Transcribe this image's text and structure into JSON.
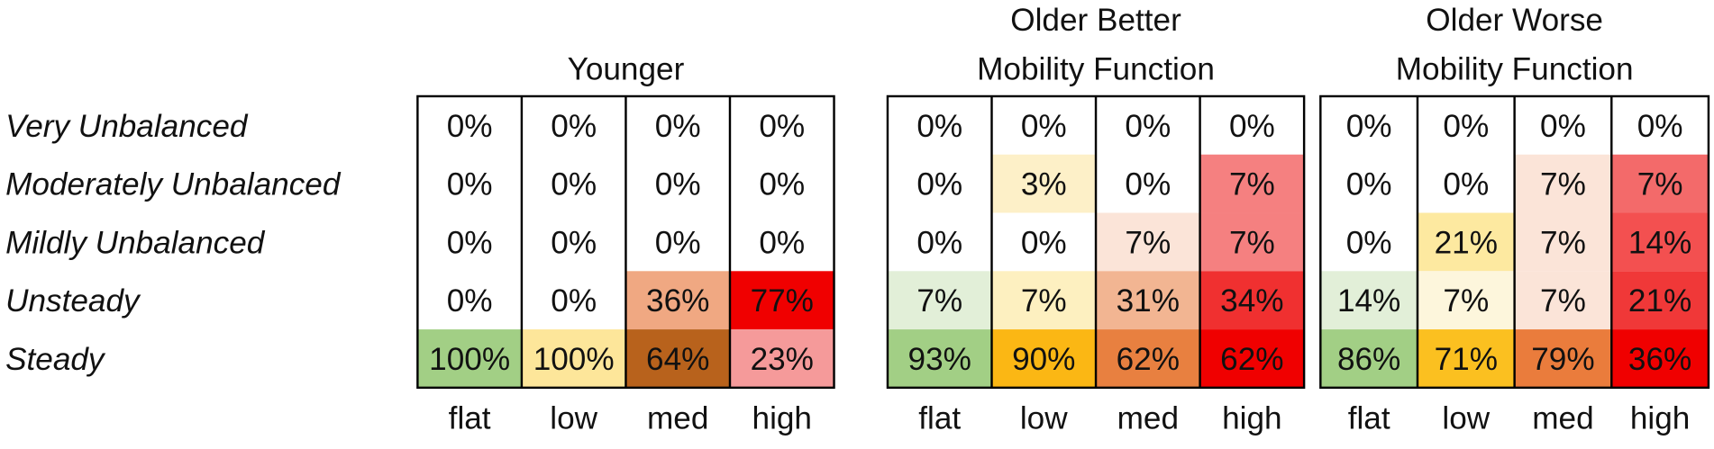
{
  "chart_data": [
    {
      "type": "heatmap",
      "title": [
        "Younger"
      ],
      "y_categories": [
        "Very Unbalanced",
        "Moderately Unbalanced",
        "Mildly Unbalanced",
        "Unsteady",
        "Steady"
      ],
      "categories": [
        "flat",
        "low",
        "med",
        "high"
      ],
      "values": [
        [
          0,
          0,
          0,
          0
        ],
        [
          0,
          0,
          0,
          0
        ],
        [
          0,
          0,
          0,
          0
        ],
        [
          0,
          0,
          36,
          77
        ],
        [
          100,
          100,
          64,
          23
        ]
      ],
      "value_labels": [
        [
          "0%",
          "0%",
          "0%",
          "0%"
        ],
        [
          "0%",
          "0%",
          "0%",
          "0%"
        ],
        [
          "0%",
          "0%",
          "0%",
          "0%"
        ],
        [
          "0%",
          "0%",
          "36%",
          "77%"
        ],
        [
          "100%",
          "100%",
          "64%",
          "23%"
        ]
      ],
      "cell_colors": [
        [
          "#ffffff",
          "#ffffff",
          "#ffffff",
          "#ffffff"
        ],
        [
          "#ffffff",
          "#ffffff",
          "#ffffff",
          "#ffffff"
        ],
        [
          "#ffffff",
          "#ffffff",
          "#ffffff",
          "#ffffff"
        ],
        [
          "#ffffff",
          "#ffffff",
          "#f0a882",
          "#f00000"
        ],
        [
          "#a2cf85",
          "#fde69a",
          "#b8621c",
          "#f59a9a"
        ]
      ]
    },
    {
      "type": "heatmap",
      "title": [
        "Older Better",
        "Mobility Function"
      ],
      "categories": [
        "flat",
        "low",
        "med",
        "high"
      ],
      "values": [
        [
          0,
          0,
          0,
          0
        ],
        [
          0,
          3,
          0,
          7
        ],
        [
          0,
          0,
          7,
          7
        ],
        [
          7,
          7,
          31,
          34
        ],
        [
          93,
          90,
          62,
          62
        ]
      ],
      "value_labels": [
        [
          "0%",
          "0%",
          "0%",
          "0%"
        ],
        [
          "0%",
          "3%",
          "0%",
          "7%"
        ],
        [
          "0%",
          "0%",
          "7%",
          "7%"
        ],
        [
          "7%",
          "7%",
          "31%",
          "34%"
        ],
        [
          "93%",
          "90%",
          "62%",
          "62%"
        ]
      ],
      "cell_colors": [
        [
          "#ffffff",
          "#ffffff",
          "#ffffff",
          "#ffffff"
        ],
        [
          "#ffffff",
          "#fdf0c8",
          "#ffffff",
          "#f58080"
        ],
        [
          "#ffffff",
          "#ffffff",
          "#fbe4d8",
          "#f58080"
        ],
        [
          "#e2efd8",
          "#fdf0c0",
          "#f2b592",
          "#f03030"
        ],
        [
          "#a2cf85",
          "#fbb714",
          "#e88040",
          "#f00000"
        ]
      ]
    },
    {
      "type": "heatmap",
      "title": [
        "Older Worse",
        "Mobility Function"
      ],
      "categories": [
        "flat",
        "low",
        "med",
        "high"
      ],
      "values": [
        [
          0,
          0,
          0,
          0
        ],
        [
          0,
          0,
          7,
          7
        ],
        [
          0,
          21,
          7,
          14
        ],
        [
          14,
          7,
          7,
          21
        ],
        [
          86,
          71,
          79,
          36
        ]
      ],
      "value_labels": [
        [
          "0%",
          "0%",
          "0%",
          "0%"
        ],
        [
          "0%",
          "0%",
          "7%",
          "7%"
        ],
        [
          "0%",
          "21%",
          "7%",
          "14%"
        ],
        [
          "14%",
          "7%",
          "7%",
          "21%"
        ],
        [
          "86%",
          "71%",
          "79%",
          "36%"
        ]
      ],
      "cell_colors": [
        [
          "#ffffff",
          "#ffffff",
          "#ffffff",
          "#ffffff"
        ],
        [
          "#ffffff",
          "#ffffff",
          "#fbe4d8",
          "#f36a6a"
        ],
        [
          "#ffffff",
          "#fde9a0",
          "#fbe4d8",
          "#f35050"
        ],
        [
          "#e2efd8",
          "#fdf6dc",
          "#fbe4d8",
          "#f03838"
        ],
        [
          "#a2cf85",
          "#fbc020",
          "#ea7c3c",
          "#f00000"
        ]
      ]
    }
  ]
}
